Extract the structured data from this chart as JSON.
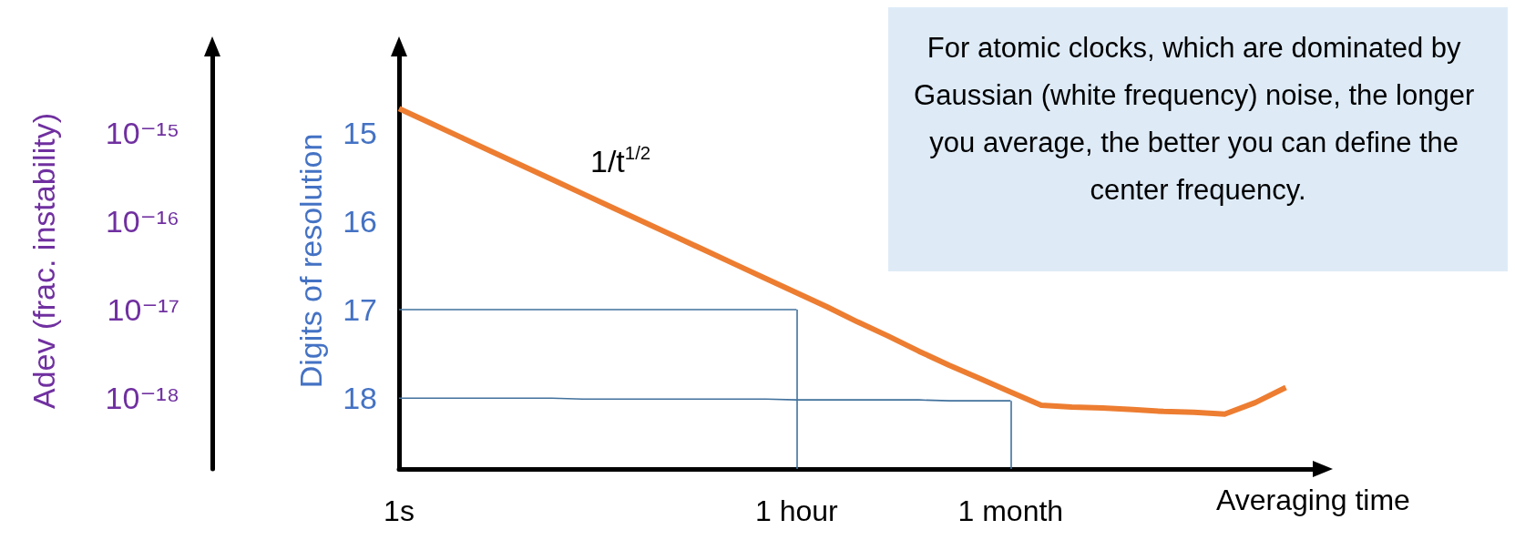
{
  "chart_data": {
    "type": "line",
    "xlabel": "Averaging time",
    "ylabel": "Digits of resolution",
    "categories": [
      "1s",
      null,
      null,
      null,
      null,
      null,
      null,
      null,
      null,
      null,
      null,
      null,
      null,
      "1 hour",
      null,
      null,
      null,
      null,
      null,
      null,
      "1 month",
      null,
      null,
      null,
      null,
      null,
      null,
      null,
      null,
      null,
      null
    ],
    "ylim": [
      18.8,
      14.1
    ],
    "yticks": [
      15,
      16,
      17,
      18
    ],
    "ref_lines": [
      {
        "axis": "x",
        "value": "1 hour",
        "color": "#41719c"
      },
      {
        "axis": "x",
        "value": "1 month",
        "color": "#41719c"
      }
    ],
    "grid": false,
    "marker": "none",
    "line_style": "solid",
    "series": [
      {
        "color": "#ed7d31",
        "values": [
          14.73,
          14.89,
          15.05,
          15.21,
          15.37,
          15.53,
          15.69,
          15.85,
          16.01,
          16.17,
          16.33,
          16.49,
          16.65,
          16.81,
          16.97,
          17.14,
          17.3,
          17.47,
          17.63,
          17.78,
          17.93,
          18.08,
          18.1,
          18.11,
          18.13,
          18.15,
          18.16,
          18.18,
          18.05,
          17.88,
          null
        ]
      },
      {
        "color": "#41719c",
        "values": [
          17,
          17,
          17,
          17,
          17,
          17,
          17,
          17,
          17,
          17,
          17,
          17,
          17,
          17,
          null,
          null,
          null,
          null,
          null,
          null,
          null,
          null,
          null,
          null,
          null,
          null,
          null,
          null,
          null,
          null,
          null
        ]
      },
      {
        "color": "#41719c",
        "values": [
          18,
          18,
          18,
          18,
          18,
          18,
          18.01,
          18.01,
          18.01,
          18.01,
          18.01,
          18.01,
          18.01,
          18.02,
          18.02,
          18.02,
          18.02,
          18.02,
          18.03,
          18.03,
          18.03,
          null,
          null,
          null,
          null,
          null,
          null,
          null,
          null,
          null,
          null
        ]
      }
    ],
    "annotations": [
      "1/t$^{1/2}$",
      "For atomic clocks, which are dominated by Gaussian (white frequency) noise, the longer you average, the better you can define the center frequency.",
      "Adev (frac. instability)",
      "10⁻¹⁵",
      "10⁻¹⁶",
      "10⁻¹⁷",
      "10⁻¹⁸"
    ]
  }
}
